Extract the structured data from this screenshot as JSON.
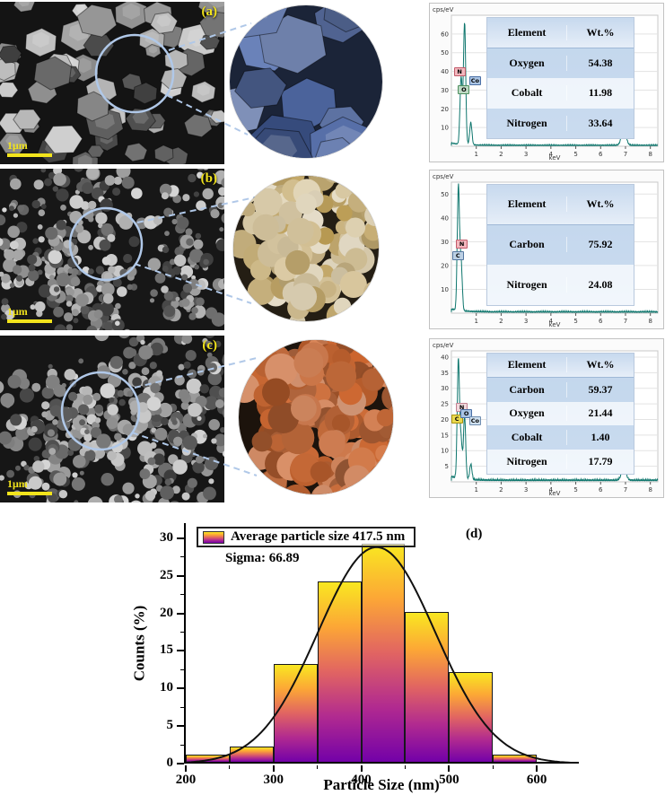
{
  "panels": [
    {
      "id": "a",
      "label": "(a)",
      "scalebar_label": "1μm",
      "eds": {
        "unit_label": "cps/eV",
        "x_axis_label": "keV",
        "y_max": 70,
        "y_ticks": [
          10,
          20,
          30,
          40,
          50,
          60
        ],
        "x_ticks": [
          1,
          2,
          3,
          4,
          5,
          6,
          7,
          8
        ],
        "peaks": [
          {
            "kev": 0.39,
            "h": 36
          },
          {
            "kev": 0.53,
            "h": 65
          },
          {
            "kev": 0.78,
            "h": 12
          },
          {
            "kev": 6.93,
            "h": 9
          }
        ],
        "markers": [
          {
            "el": "N",
            "kev": 0.33,
            "val": 40,
            "bg": "#f3b6bd",
            "border": "#c25b6a"
          },
          {
            "el": "Co",
            "kev": 0.95,
            "val": 35,
            "bg": "#aac4e4",
            "border": "#4a6fa5"
          },
          {
            "el": "O",
            "kev": 0.5,
            "val": 30,
            "bg": "#bcd9c4",
            "border": "#4f8f5f"
          },
          {
            "el": "Co",
            "kev": 6.93,
            "val": 32,
            "bg": "#aac4e4",
            "border": "#4a6fa5"
          }
        ],
        "table": {
          "headers": [
            "Element",
            "Wt.%"
          ],
          "rows": [
            [
              "Oxygen",
              "54.38"
            ],
            [
              "Cobalt",
              "11.98"
            ],
            [
              "Nitrogen",
              "33.64"
            ]
          ]
        }
      }
    },
    {
      "id": "b",
      "label": "(b)",
      "scalebar_label": "1μm",
      "eds": {
        "unit_label": "cps/eV",
        "x_axis_label": "keV",
        "y_max": 55,
        "y_ticks": [
          10,
          20,
          30,
          40,
          50
        ],
        "x_ticks": [
          1,
          2,
          3,
          4,
          5,
          6,
          7,
          8
        ],
        "peaks": [
          {
            "kev": 0.28,
            "h": 52
          },
          {
            "kev": 0.39,
            "h": 20
          }
        ],
        "markers": [
          {
            "el": "N",
            "kev": 0.42,
            "val": 29,
            "bg": "#f3b6bd",
            "border": "#c25b6a"
          },
          {
            "el": "C",
            "kev": 0.26,
            "val": 24,
            "bg": "#bcd0e4",
            "border": "#5577a0"
          }
        ],
        "table": {
          "headers": [
            "Element",
            "Wt.%"
          ],
          "rows": [
            [
              "Carbon",
              "75.92"
            ],
            [
              "Nitrogen",
              "24.08"
            ]
          ]
        }
      }
    },
    {
      "id": "c",
      "label": "(c)",
      "scalebar_label": "1μm",
      "eds": {
        "unit_label": "cps/eV",
        "x_axis_label": "keV",
        "y_max": 42,
        "y_ticks": [
          5,
          10,
          15,
          20,
          25,
          30,
          35,
          40
        ],
        "x_ticks": [
          1,
          2,
          3,
          4,
          5,
          6,
          7,
          8
        ],
        "peaks": [
          {
            "kev": 0.28,
            "h": 38
          },
          {
            "kev": 0.39,
            "h": 12
          },
          {
            "kev": 0.53,
            "h": 20
          },
          {
            "kev": 0.78,
            "h": 5
          },
          {
            "kev": 6.93,
            "h": 4
          }
        ],
        "markers": [
          {
            "el": "C",
            "kev": 0.22,
            "val": 20,
            "bg": "#ead94e",
            "border": "#a8920e"
          },
          {
            "el": "N",
            "kev": 0.42,
            "val": 24,
            "bg": "#f2d8dc",
            "border": "#c08090"
          },
          {
            "el": "O",
            "kev": 0.6,
            "val": 22,
            "bg": "#aac4e4",
            "border": "#4a6fa5"
          },
          {
            "el": "Co",
            "kev": 0.95,
            "val": 19.5,
            "bg": "#cfe0ef",
            "border": "#6e8db0"
          },
          {
            "el": "Co",
            "kev": 6.93,
            "val": 21,
            "bg": "#ece44e",
            "border": "#a8a00e"
          }
        ],
        "table": {
          "headers": [
            "Element",
            "Wt.%"
          ],
          "rows": [
            [
              "Carbon",
              "59.37"
            ],
            [
              "Oxygen",
              "21.44"
            ],
            [
              "Cobalt",
              "1.40"
            ],
            [
              "Nitrogen",
              "17.79"
            ]
          ]
        }
      }
    }
  ],
  "chart_data": {
    "type": "bar",
    "panel_label": "(d)",
    "legend": {
      "label": "Average particle size 417.5 nm",
      "sigma_label": "Sigma: 66.89"
    },
    "xlabel": "Particle Size (nm)",
    "ylabel": "Counts (%)",
    "xlim": [
      200,
      650
    ],
    "ylim": [
      0,
      32
    ],
    "x_ticks": [
      200,
      300,
      400,
      500,
      600
    ],
    "y_ticks": [
      0,
      5,
      10,
      15,
      20,
      25,
      30
    ],
    "bin_width": 50,
    "bins_start": [
      200,
      250,
      300,
      350,
      400,
      450,
      500,
      550
    ],
    "values": [
      1,
      2,
      13,
      24,
      29,
      20,
      12,
      1
    ],
    "fit": {
      "type": "gaussian",
      "mean": 417.5,
      "sigma": 66.89,
      "amplitude": 28.8
    },
    "bar_gradient": [
      "#f9e721",
      "#fca636",
      "#e16462",
      "#b12a90",
      "#7301a8"
    ],
    "curve_color": "#111111"
  }
}
